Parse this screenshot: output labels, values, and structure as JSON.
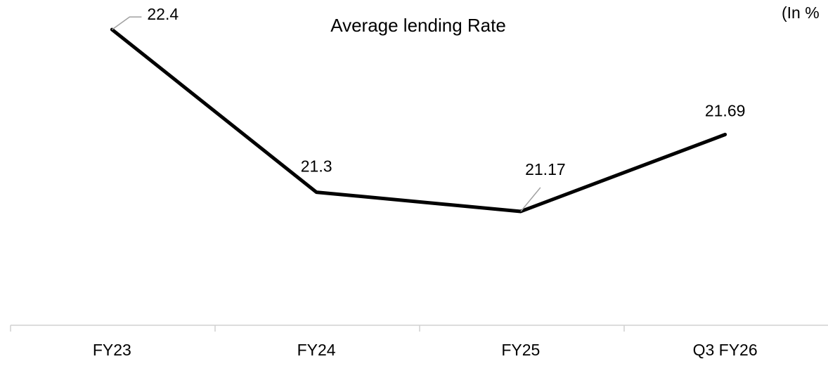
{
  "chart_data": {
    "type": "line",
    "title": "Average lending Rate",
    "subtitle": "(In %",
    "categories": [
      "FY23",
      "FY24",
      "FY25",
      "Q3 FY26"
    ],
    "series": [
      {
        "name": "Average lending Rate",
        "color": "#000000",
        "values": [
          22.4,
          21.3,
          21.17,
          21.69
        ]
      }
    ],
    "ylim": [
      20.4,
      22.6
    ]
  }
}
